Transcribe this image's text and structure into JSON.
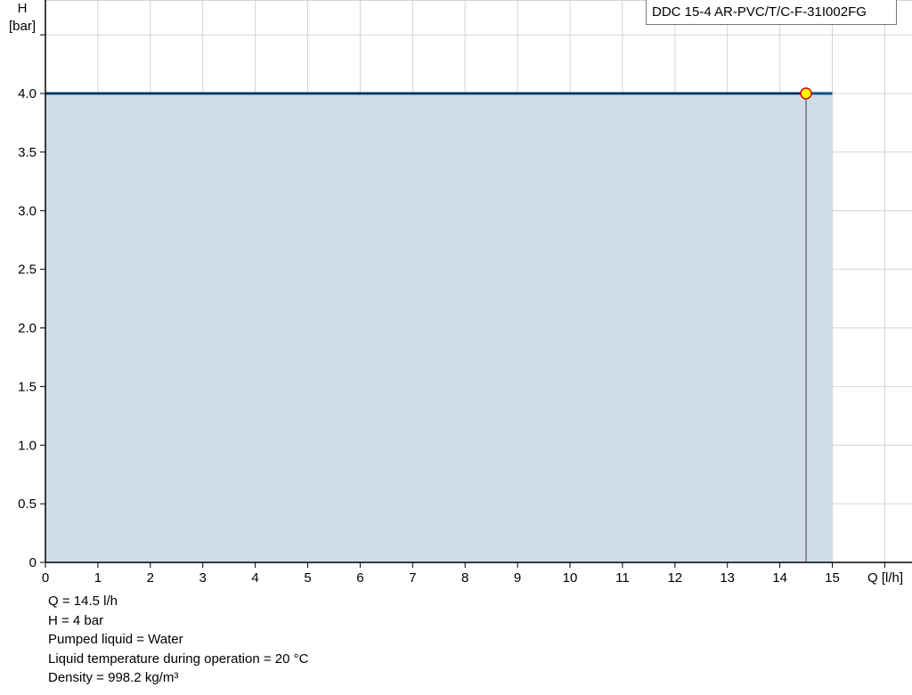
{
  "chart_data": {
    "type": "line",
    "title": "DDC 15-4 AR-PVC/T/C-F-31I002FG",
    "xlabel": "Q [l/h]",
    "ylabel_line1": "H",
    "ylabel_line2": "[bar]",
    "xlim": [
      0,
      16
    ],
    "ylim": [
      0,
      4.8
    ],
    "x_ticks": [
      0,
      1,
      2,
      3,
      4,
      5,
      6,
      7,
      8,
      9,
      10,
      11,
      12,
      13,
      14,
      15
    ],
    "y_ticks": [
      "0",
      "0.5",
      "1.0",
      "1.5",
      "2.0",
      "2.5",
      "3.0",
      "3.5",
      "4.0"
    ],
    "y_tick_values": [
      0,
      0.5,
      1.0,
      1.5,
      2.0,
      2.5,
      3.0,
      3.5,
      4.0,
      4.5
    ],
    "grid": true,
    "series": [
      {
        "x": [
          0,
          15
        ],
        "y": [
          4.0,
          4.0
        ],
        "color": "#0b4f8a",
        "fill": "#d0dce8"
      }
    ],
    "operating_point": {
      "q": 14.5,
      "h": 4.0,
      "fill": "#ffff00",
      "stroke": "#e00000"
    }
  },
  "info": [
    "Q = 14.5 l/h",
    "H = 4 bar",
    "Pumped liquid = Water",
    "Liquid temperature during operation = 20 °C",
    "Density = 998.2 kg/m³"
  ]
}
